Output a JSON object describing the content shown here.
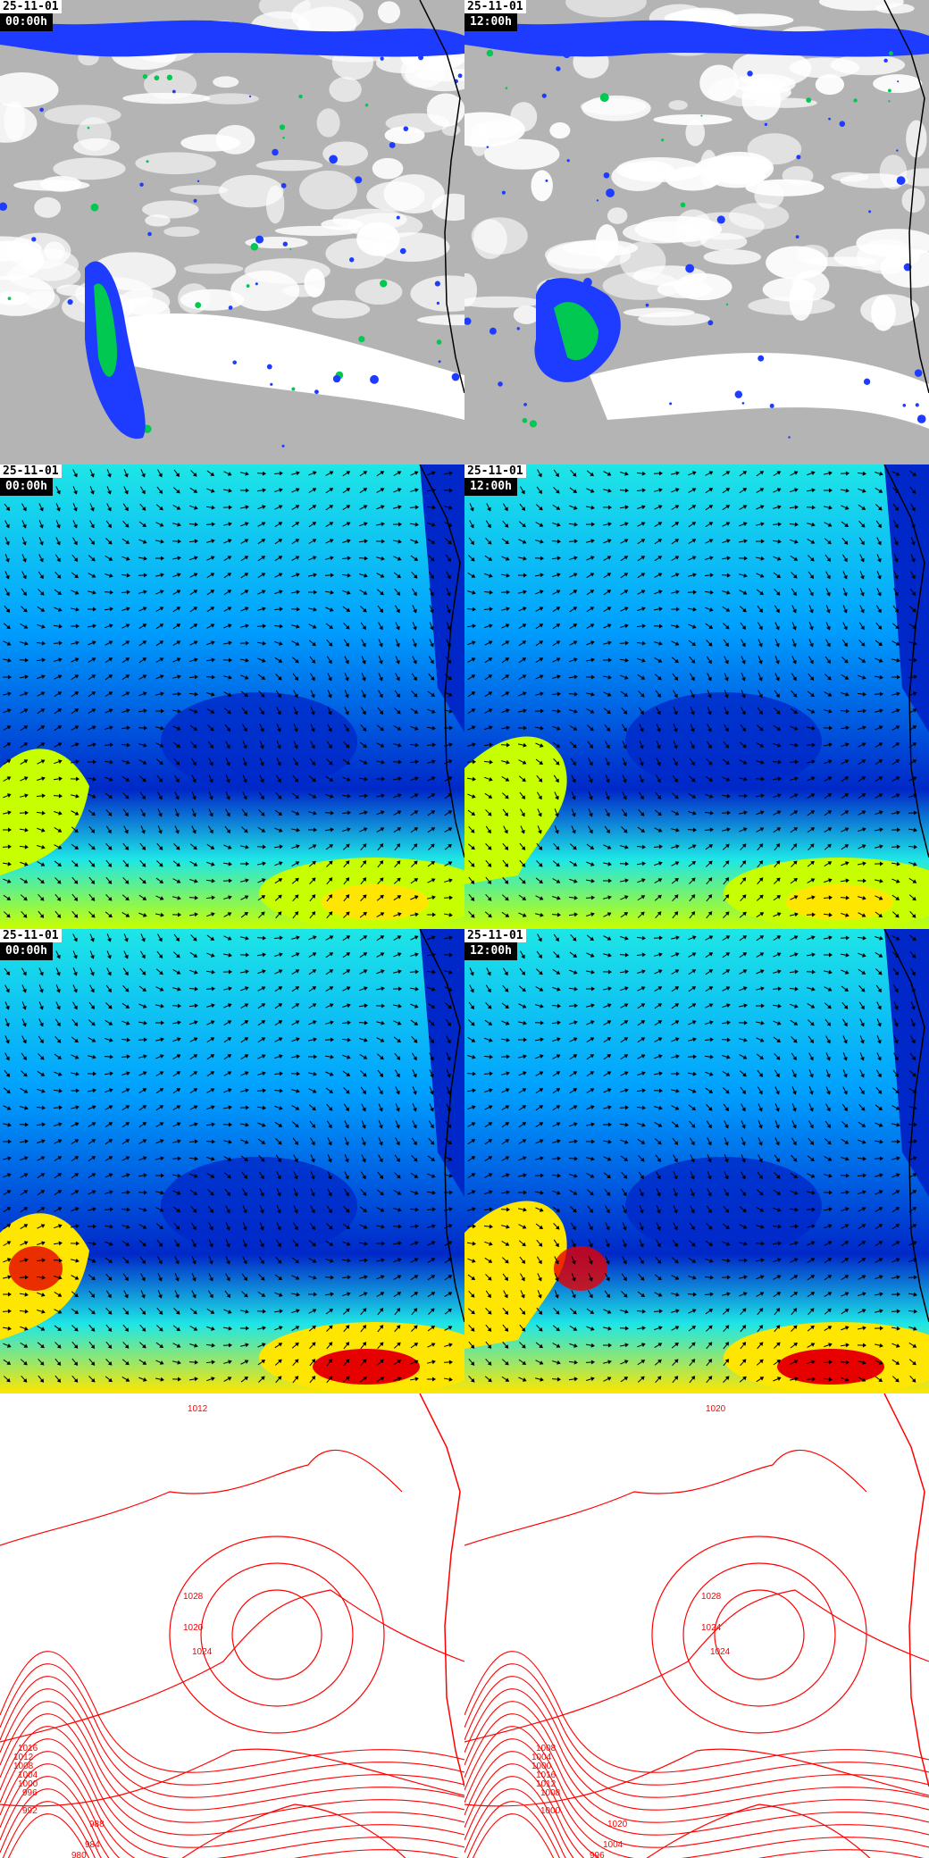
{
  "panels": {
    "date": "25-11-01",
    "times": [
      "00:00h",
      "12:00h"
    ]
  },
  "rows": [
    {
      "product": "satellite-ir-precipitation",
      "palette": {
        "clouds": "#ffffff",
        "clear": "#b4b4b4",
        "light": "#1e3cff",
        "moderate": "#00c850",
        "heavy": "#c8e600"
      }
    },
    {
      "product": "wind-speed-arrows",
      "palette": {
        "calm": "#0028c8",
        "low": "#00a0ff",
        "mid": "#1ee6e6",
        "high": "#c8ff00",
        "strong": "#ffe600"
      }
    },
    {
      "product": "wind-speed-arrows",
      "palette": {
        "calm": "#0028c8",
        "low": "#00a0ff",
        "mid": "#1ee6e6",
        "high": "#ffe600",
        "strong": "#e60000"
      }
    },
    {
      "product": "sea-level-pressure-isobars",
      "line_color": "#ff0000"
    }
  ],
  "isobar_labels": {
    "left": [
      "1012",
      "1020",
      "1024",
      "1028",
      "1016",
      "1012",
      "1008",
      "1004",
      "1000",
      "996",
      "992",
      "988",
      "984",
      "980"
    ],
    "right": [
      "1020",
      "1024",
      "1024",
      "1028",
      "1008",
      "1004",
      "1000",
      "1016",
      "1012",
      "1008",
      "1000",
      "1020",
      "1004",
      "996"
    ]
  }
}
